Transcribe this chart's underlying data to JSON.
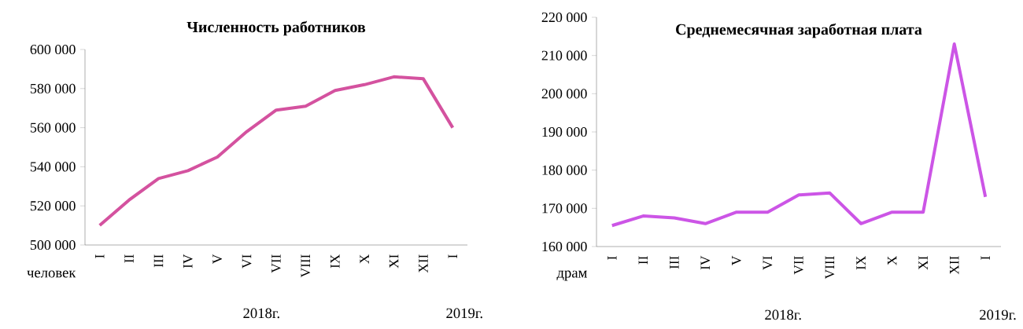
{
  "chart_data": [
    {
      "type": "line",
      "title": "Численность работников",
      "ylabel": "человек",
      "categories": [
        "I",
        "II",
        "III",
        "IV",
        "V",
        "VI",
        "VII",
        "VIII",
        "IX",
        "X",
        "XI",
        "XII",
        "I"
      ],
      "series": [
        {
          "color": "#d4529f",
          "values": [
            510000,
            523000,
            534000,
            538000,
            545000,
            558000,
            569000,
            571000,
            579000,
            582000,
            586000,
            585000,
            560000
          ]
        }
      ],
      "ylim": [
        500000,
        600000
      ],
      "yticks": [
        {
          "value": 500000,
          "label": "500 000"
        },
        {
          "value": 520000,
          "label": "520 000"
        },
        {
          "value": 540000,
          "label": "540 000"
        },
        {
          "value": 560000,
          "label": "560 000"
        },
        {
          "value": 580000,
          "label": "580 000"
        },
        {
          "value": 600000,
          "label": "600 000"
        }
      ],
      "annotations": [
        "2018г.",
        "2019г."
      ]
    },
    {
      "type": "line",
      "title": "Среднемесячная заработная плата",
      "ylabel": "драм",
      "categories": [
        "I",
        "II",
        "III",
        "IV",
        "V",
        "VI",
        "VII",
        "VIII",
        "IX",
        "X",
        "XI",
        "XII",
        "I"
      ],
      "series": [
        {
          "color": "#cc55e6",
          "values": [
            165500,
            168000,
            167500,
            166000,
            169000,
            169000,
            173500,
            174000,
            166000,
            169000,
            169000,
            213000,
            173000
          ]
        }
      ],
      "ylim": [
        160000,
        220000
      ],
      "yticks": [
        {
          "value": 160000,
          "label": "160 000"
        },
        {
          "value": 170000,
          "label": "170 000"
        },
        {
          "value": 180000,
          "label": "180 000"
        },
        {
          "value": 190000,
          "label": "190 000"
        },
        {
          "value": 200000,
          "label": "200 000"
        },
        {
          "value": 210000,
          "label": "210 000"
        },
        {
          "value": 220000,
          "label": "220 000"
        }
      ],
      "annotations": [
        "2018г.",
        "2019г."
      ]
    }
  ]
}
